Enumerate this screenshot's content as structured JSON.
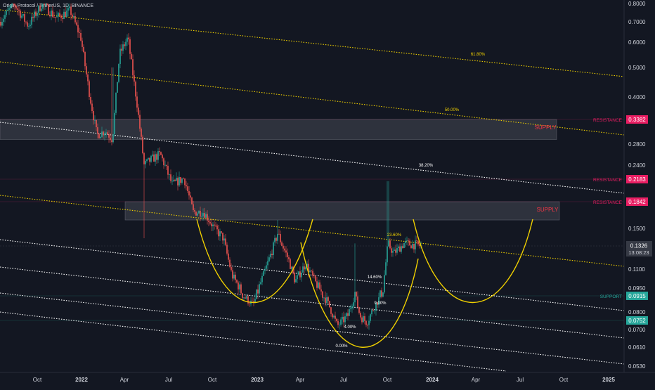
{
  "header": {
    "title": "Origin Protocol / TetherUS, 1D, BINANCE"
  },
  "chart_data": {
    "type": "candlestick",
    "title": "Origin Protocol / TetherUS, 1D, BINANCE",
    "y_scale": "log",
    "y_ticks": [
      "0.8000",
      "0.7000",
      "0.6000",
      "0.5000",
      "0.4000",
      "0.3382",
      "0.2800",
      "0.2400",
      "0.2183",
      "0.1842",
      "0.1500",
      "0.1326",
      "0.1100",
      "0.0950",
      "0.0915",
      "0.0800",
      "0.0752",
      "0.0700",
      "0.0610",
      "0.0530"
    ],
    "x_ticks": [
      "Oct",
      "2022",
      "Apr",
      "Jul",
      "Oct",
      "2023",
      "Apr",
      "Jul",
      "Oct",
      "2024",
      "Apr",
      "Jul",
      "Oct",
      "2025"
    ],
    "price_labels": [
      {
        "value": "0.3382",
        "text": "RESISTANCE",
        "color": "#e91e63"
      },
      {
        "value": "0.2183",
        "text": "RESISTANCE",
        "color": "#e91e63"
      },
      {
        "value": "0.1842",
        "text": "RESISTANCE",
        "color": "#e91e63"
      },
      {
        "value": "0.0915",
        "text": "SUPPORT",
        "color": "#26a69a"
      },
      {
        "value": "0.0752",
        "text": "",
        "color": "#26a69a"
      }
    ],
    "last_price": {
      "value": "0.1326",
      "countdown": "13:08:23"
    },
    "zones": [
      {
        "label": "SUPPLY",
        "top": 0.3382,
        "bottom": 0.29,
        "label_color": "#f23645"
      },
      {
        "label": "SUPPLY",
        "top": 0.1842,
        "bottom": 0.16,
        "label_color": "#f23645"
      }
    ],
    "fib_levels": [
      "61.80%",
      "50.00%",
      "38.20%",
      "23.60%",
      "14.60%",
      "9.00%",
      "4.00%",
      "0.00%"
    ],
    "colors": {
      "up": "#26a69a",
      "down": "#ef5350",
      "fib": "#f0d000",
      "channel": "#ffffff",
      "pattern": "#f0d000",
      "background": "#131722"
    }
  }
}
